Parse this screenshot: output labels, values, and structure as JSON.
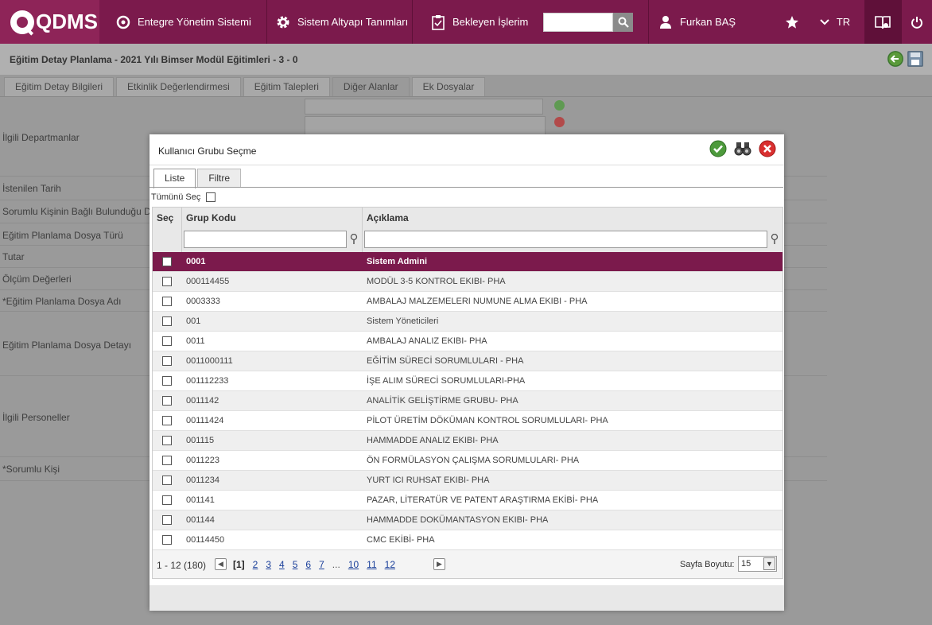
{
  "topbar": {
    "logo": "QDMS",
    "nav": [
      {
        "label": "Entegre Yönetim Sistemi",
        "icon": "q-circle-icon"
      },
      {
        "label": "Sistem Altyapı Tanımları",
        "icon": "gear-icon"
      },
      {
        "label": "Bekleyen İşlerim",
        "icon": "clipboard-icon"
      }
    ],
    "search_value": "",
    "user": "Furkan BAŞ",
    "language": "TR",
    "accent": "#7b1a4c"
  },
  "page": {
    "title": "Eğitim Detay Planlama - 2021 Yılı Bimser Modül Eğitimleri - 3 - 0",
    "tabs": [
      "Eğitim Detay Bilgileri",
      "Etkinlik Değerlendirmesi",
      "Eğitim Talepleri",
      "Diğer Alanlar",
      "Ek Dosyalar"
    ],
    "active_tab": "Diğer Alanlar",
    "fields": [
      "İlgili Departmanlar",
      "İstenilen Tarih",
      "Sorumlu Kişinin Bağlı Bulunduğu Depa",
      "Eğitim Planlama Dosya Türü",
      "Tutar",
      "Ölçüm Değerleri",
      "*Eğitim Planlama Dosya Adı",
      "Eğitim Planlama Dosya Detayı",
      "İlgili Personeller",
      "*Sorumlu Kişi"
    ]
  },
  "modal": {
    "title": "Kullanıcı Grubu Seçme",
    "tabs": [
      "Liste",
      "Filtre"
    ],
    "active_tab": "Liste",
    "select_all_label": "Tümünü Seç",
    "columns": {
      "select": "Seç",
      "code": "Grup Kodu",
      "desc": "Açıklama"
    },
    "filter_code": "",
    "filter_desc": "",
    "rows": [
      {
        "code": "0001",
        "desc": "Sistem Admini"
      },
      {
        "code": "000114455",
        "desc": "MODÜL 3-5 KONTROL EKIBI- PHA"
      },
      {
        "code": "0003333",
        "desc": "AMBALAJ MALZEMELERI NUMUNE ALMA EKIBI - PHA"
      },
      {
        "code": "001",
        "desc": "Sistem Yöneticileri"
      },
      {
        "code": "0011",
        "desc": "AMBALAJ ANALIZ EKIBI- PHA"
      },
      {
        "code": "0011000111",
        "desc": "EĞİTİM SÜRECİ SORUMLULARI - PHA"
      },
      {
        "code": "001112233",
        "desc": "İŞE ALIM SÜRECİ SORUMLULARI-PHA"
      },
      {
        "code": "0011142",
        "desc": "ANALİTİK GELİŞTİRME GRUBU- PHA"
      },
      {
        "code": "00111424",
        "desc": "PİLOT ÜRETİM DÖKÜMAN KONTROL SORUMLULARI- PHA"
      },
      {
        "code": "001115",
        "desc": "HAMMADDE ANALIZ EKIBI- PHA"
      },
      {
        "code": "0011223",
        "desc": "ÖN FORMÜLASYON ÇALIŞMA SORUMLULARI- PHA"
      },
      {
        "code": "0011234",
        "desc": "YURT ICI RUHSAT EKIBI- PHA"
      },
      {
        "code": "001141",
        "desc": "PAZAR, LİTERATÜR VE PATENT ARAŞTIRMA EKİBİ- PHA"
      },
      {
        "code": "001144",
        "desc": "HAMMADDE DOKÜMANTASYON EKIBI- PHA"
      },
      {
        "code": "00114450",
        "desc": "CMC EKİBİ- PHA"
      }
    ],
    "selected_code": "0001",
    "pager": {
      "info": "1 - 12 (180)",
      "pages": [
        "[1]",
        "2",
        "3",
        "4",
        "5",
        "6",
        "7",
        "...",
        "10",
        "11",
        "12"
      ],
      "size_label": "Sayfa Boyutu:",
      "size": "15"
    }
  }
}
